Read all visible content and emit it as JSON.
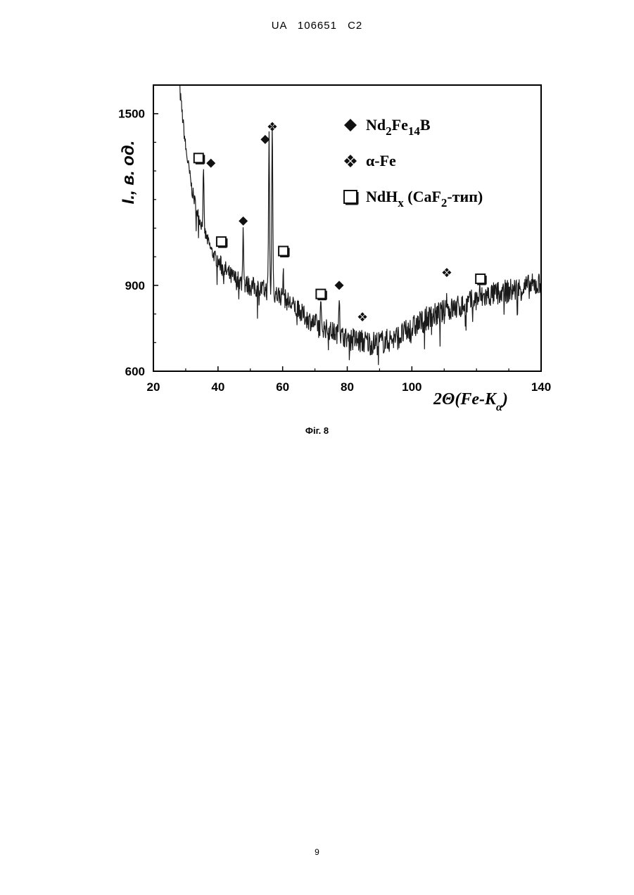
{
  "header": "UA   106651   C2",
  "caption": "Фіг. 8",
  "page_number": "9",
  "chart_data": {
    "type": "line",
    "xlabel_prefix": "2",
    "xlabel_theta": "Θ",
    "xlabel_paren": "(Fe-K",
    "xlabel_sub": "α",
    "xlabel_close": ")",
    "ylabel": "I., в. од.",
    "xlim": [
      20,
      140
    ],
    "ylim": [
      600,
      1600
    ],
    "x_ticks": [
      "20",
      "40",
      "60",
      "80",
      "100",
      "140"
    ],
    "y_ticks": [
      "600",
      "900",
      "1500"
    ],
    "grid": false,
    "legend_position": "top-right",
    "legend": [
      {
        "symbol": "diamond",
        "name": "Nd",
        "sub1": "2",
        "mid": "Fe",
        "sub2": "14",
        "tail": "B",
        "suffix": ""
      },
      {
        "symbol": "clover",
        "name": "α-Fe",
        "sub1": "",
        "mid": "",
        "sub2": "",
        "tail": "",
        "suffix": ""
      },
      {
        "symbol": "square",
        "name": "NdH",
        "sub1": "x",
        "mid": " (CaF",
        "sub2": "2",
        "tail": "-тип)",
        "suffix": ""
      }
    ],
    "series_baseline": [
      [
        28,
        1600
      ],
      [
        30,
        1380
      ],
      [
        32,
        1230
      ],
      [
        34,
        1140
      ],
      [
        36,
        1080
      ],
      [
        38,
        1020
      ],
      [
        40,
        980
      ],
      [
        44,
        930
      ],
      [
        48,
        905
      ],
      [
        52,
        890
      ],
      [
        56,
        880
      ],
      [
        58,
        870
      ],
      [
        60,
        860
      ],
      [
        64,
        820
      ],
      [
        68,
        780
      ],
      [
        72,
        755
      ],
      [
        76,
        735
      ],
      [
        80,
        715
      ],
      [
        84,
        705
      ],
      [
        88,
        698
      ],
      [
        92,
        705
      ],
      [
        96,
        720
      ],
      [
        100,
        750
      ],
      [
        104,
        780
      ],
      [
        108,
        800
      ],
      [
        112,
        815
      ],
      [
        116,
        830
      ],
      [
        120,
        850
      ],
      [
        124,
        865
      ],
      [
        128,
        875
      ],
      [
        132,
        885
      ],
      [
        136,
        895
      ],
      [
        140,
        905
      ]
    ],
    "peaks": [
      {
        "x": 35.5,
        "y": 1290
      },
      {
        "x": 47.8,
        "y": 1100
      },
      {
        "x": 55.8,
        "y": 1420
      },
      {
        "x": 56.8,
        "y": 1470
      },
      {
        "x": 60.2,
        "y": 930
      },
      {
        "x": 71.8,
        "y": 820
      },
      {
        "x": 77.5,
        "y": 885
      },
      {
        "x": 110.8,
        "y": 880
      },
      {
        "x": 121,
        "y": 870
      }
    ],
    "markers": [
      {
        "symbol": "square",
        "x": 34,
        "y": 1345
      },
      {
        "symbol": "diamond",
        "x": 37.8,
        "y": 1327
      },
      {
        "symbol": "square",
        "x": 41,
        "y": 1053
      },
      {
        "symbol": "diamond",
        "x": 47.8,
        "y": 1125
      },
      {
        "symbol": "diamond",
        "x": 54.6,
        "y": 1410
      },
      {
        "symbol": "clover",
        "x": 56.8,
        "y": 1455
      },
      {
        "symbol": "square",
        "x": 60.2,
        "y": 1020
      },
      {
        "symbol": "square",
        "x": 71.8,
        "y": 870
      },
      {
        "symbol": "diamond",
        "x": 77.5,
        "y": 900
      },
      {
        "symbol": "clover",
        "x": 84.7,
        "y": 790
      },
      {
        "symbol": "clover",
        "x": 110.8,
        "y": 945
      },
      {
        "symbol": "square",
        "x": 121.2,
        "y": 923
      }
    ],
    "colors": {
      "line": "#1a1a1a",
      "marker": "#111111",
      "axis": "#000000"
    }
  }
}
